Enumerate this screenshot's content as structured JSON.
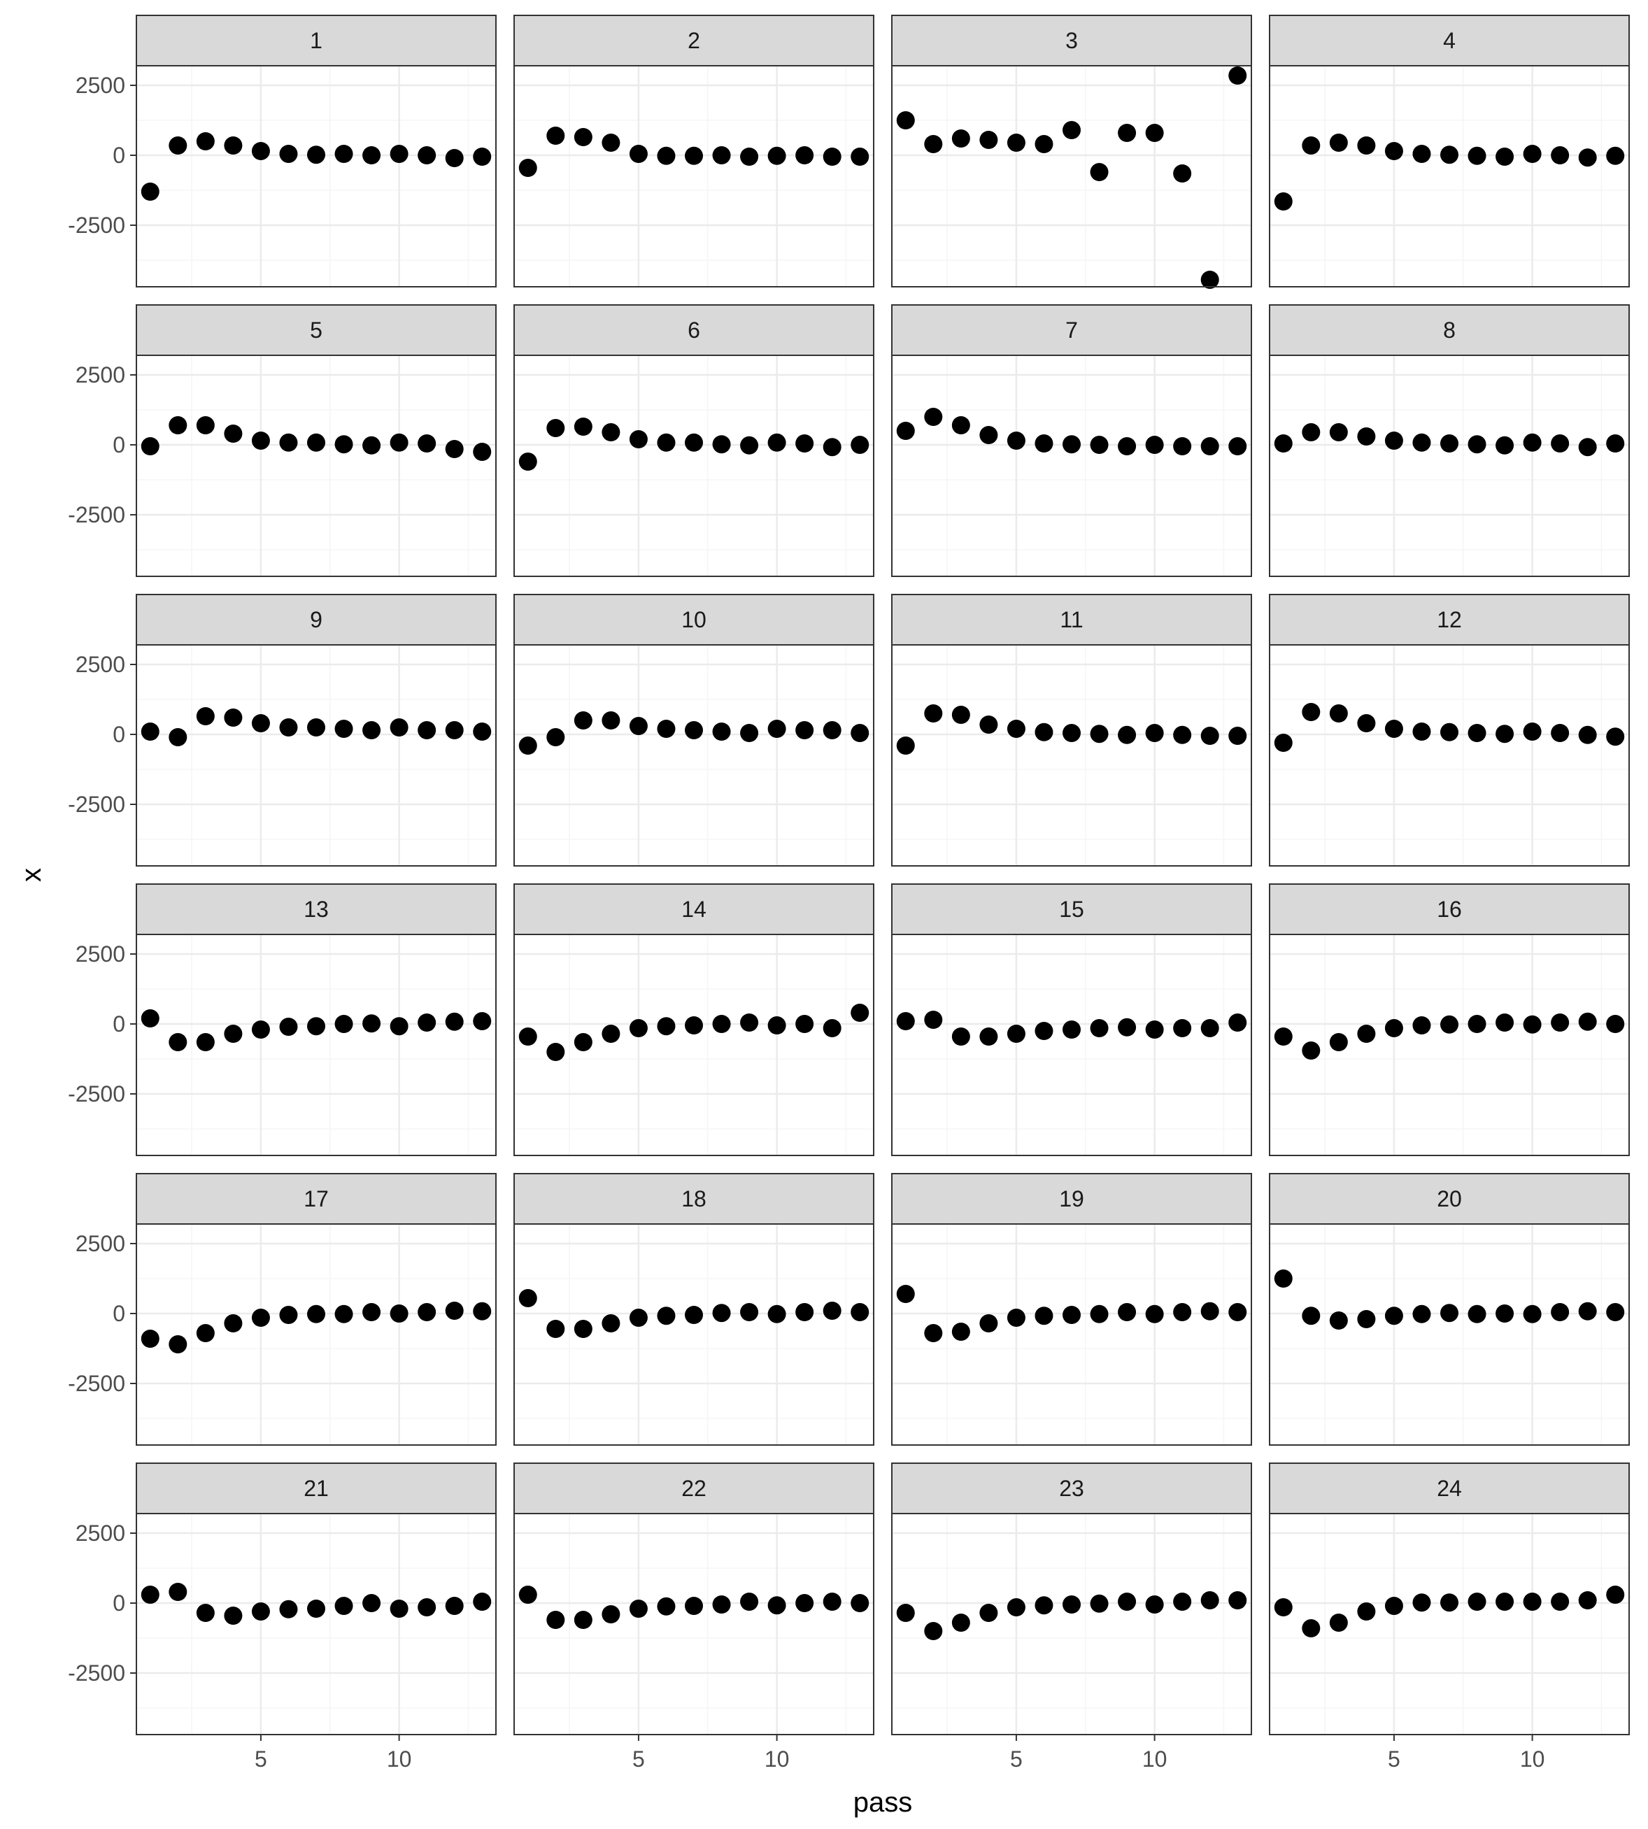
{
  "chart_data": {
    "type": "scatter",
    "xlabel": "pass",
    "ylabel": "x",
    "xlim": [
      0.5,
      13.5
    ],
    "ylim": [
      -4700,
      3200
    ],
    "x_ticks": [
      5,
      10
    ],
    "x_tick_labels": [
      "5",
      "10"
    ],
    "y_ticks": [
      2500,
      0,
      -2500
    ],
    "y_tick_labels": [
      "2500",
      "0",
      "-2500"
    ],
    "grid": true,
    "legend": "none",
    "facet_ncol": 4,
    "colors": {
      "point": "#000000",
      "panel_border": "#333333",
      "strip_fill": "#d9d9d9",
      "grid_major": "#ebebeb",
      "grid_minor": "#f5f5f5",
      "tick_label": "#4d4d4d"
    },
    "x": [
      1,
      2,
      3,
      4,
      5,
      6,
      7,
      8,
      9,
      10,
      11,
      12,
      13
    ],
    "panels": [
      {
        "label": "1",
        "y": [
          -1300,
          350,
          500,
          350,
          150,
          50,
          20,
          50,
          0,
          50,
          0,
          -100,
          -50
        ]
      },
      {
        "label": "2",
        "y": [
          -450,
          700,
          650,
          450,
          50,
          -20,
          -20,
          0,
          -50,
          -20,
          0,
          -50,
          -50
        ]
      },
      {
        "label": "3",
        "y": [
          1250,
          400,
          600,
          550,
          450,
          400,
          900,
          -600,
          800,
          800,
          -650,
          -4450,
          2850
        ]
      },
      {
        "label": "4",
        "y": [
          -1650,
          350,
          450,
          350,
          150,
          50,
          20,
          -20,
          -50,
          50,
          0,
          -80,
          -20
        ]
      },
      {
        "label": "5",
        "y": [
          -50,
          700,
          700,
          400,
          150,
          80,
          80,
          20,
          -20,
          80,
          50,
          -150,
          -250
        ]
      },
      {
        "label": "6",
        "y": [
          -600,
          600,
          650,
          450,
          200,
          80,
          80,
          20,
          -20,
          80,
          50,
          -80,
          0
        ]
      },
      {
        "label": "7",
        "y": [
          500,
          1000,
          700,
          350,
          150,
          50,
          20,
          0,
          -50,
          0,
          -50,
          -50,
          -50
        ]
      },
      {
        "label": "8",
        "y": [
          50,
          450,
          450,
          300,
          150,
          80,
          50,
          20,
          -20,
          80,
          50,
          -80,
          50
        ]
      },
      {
        "label": "9",
        "y": [
          100,
          -100,
          650,
          600,
          400,
          250,
          250,
          200,
          150,
          250,
          150,
          150,
          100
        ]
      },
      {
        "label": "10",
        "y": [
          -400,
          -100,
          500,
          500,
          300,
          200,
          150,
          100,
          50,
          200,
          150,
          150,
          50
        ]
      },
      {
        "label": "11",
        "y": [
          -400,
          750,
          700,
          350,
          200,
          80,
          50,
          20,
          -20,
          50,
          -20,
          -50,
          -50
        ]
      },
      {
        "label": "12",
        "y": [
          -300,
          800,
          750,
          400,
          200,
          100,
          80,
          50,
          20,
          100,
          50,
          -20,
          -80
        ]
      },
      {
        "label": "13",
        "y": [
          200,
          -650,
          -650,
          -350,
          -200,
          -100,
          -80,
          0,
          20,
          -80,
          50,
          80,
          100
        ]
      },
      {
        "label": "14",
        "y": [
          -450,
          -1000,
          -650,
          -350,
          -150,
          -80,
          -50,
          0,
          50,
          -50,
          0,
          -150,
          400
        ]
      },
      {
        "label": "15",
        "y": [
          100,
          150,
          -450,
          -450,
          -350,
          -250,
          -200,
          -150,
          -120,
          -200,
          -150,
          -150,
          50
        ]
      },
      {
        "label": "16",
        "y": [
          -450,
          -950,
          -650,
          -350,
          -150,
          -50,
          -20,
          0,
          50,
          -20,
          50,
          80,
          0
        ]
      },
      {
        "label": "17",
        "y": [
          -900,
          -1100,
          -700,
          -350,
          -150,
          -50,
          -20,
          -20,
          50,
          0,
          50,
          100,
          80
        ]
      },
      {
        "label": "18",
        "y": [
          550,
          -550,
          -550,
          -350,
          -150,
          -80,
          -50,
          20,
          50,
          -20,
          50,
          100,
          50
        ]
      },
      {
        "label": "19",
        "y": [
          700,
          -700,
          -650,
          -350,
          -150,
          -80,
          -50,
          -20,
          50,
          -20,
          50,
          80,
          50
        ]
      },
      {
        "label": "20",
        "y": [
          1250,
          -80,
          -250,
          -200,
          -80,
          -20,
          20,
          -20,
          0,
          -20,
          50,
          80,
          50
        ]
      },
      {
        "label": "21",
        "y": [
          300,
          400,
          -350,
          -450,
          -300,
          -220,
          -200,
          -100,
          0,
          -200,
          -150,
          -100,
          50
        ]
      },
      {
        "label": "22",
        "y": [
          300,
          -600,
          -600,
          -400,
          -200,
          -120,
          -100,
          -50,
          50,
          -80,
          0,
          50,
          0
        ]
      },
      {
        "label": "23",
        "y": [
          -350,
          -1000,
          -700,
          -350,
          -150,
          -80,
          -50,
          -20,
          50,
          -50,
          50,
          100,
          100
        ]
      },
      {
        "label": "24",
        "y": [
          -150,
          -900,
          -700,
          -300,
          -100,
          20,
          20,
          50,
          50,
          50,
          50,
          100,
          300
        ]
      }
    ]
  }
}
